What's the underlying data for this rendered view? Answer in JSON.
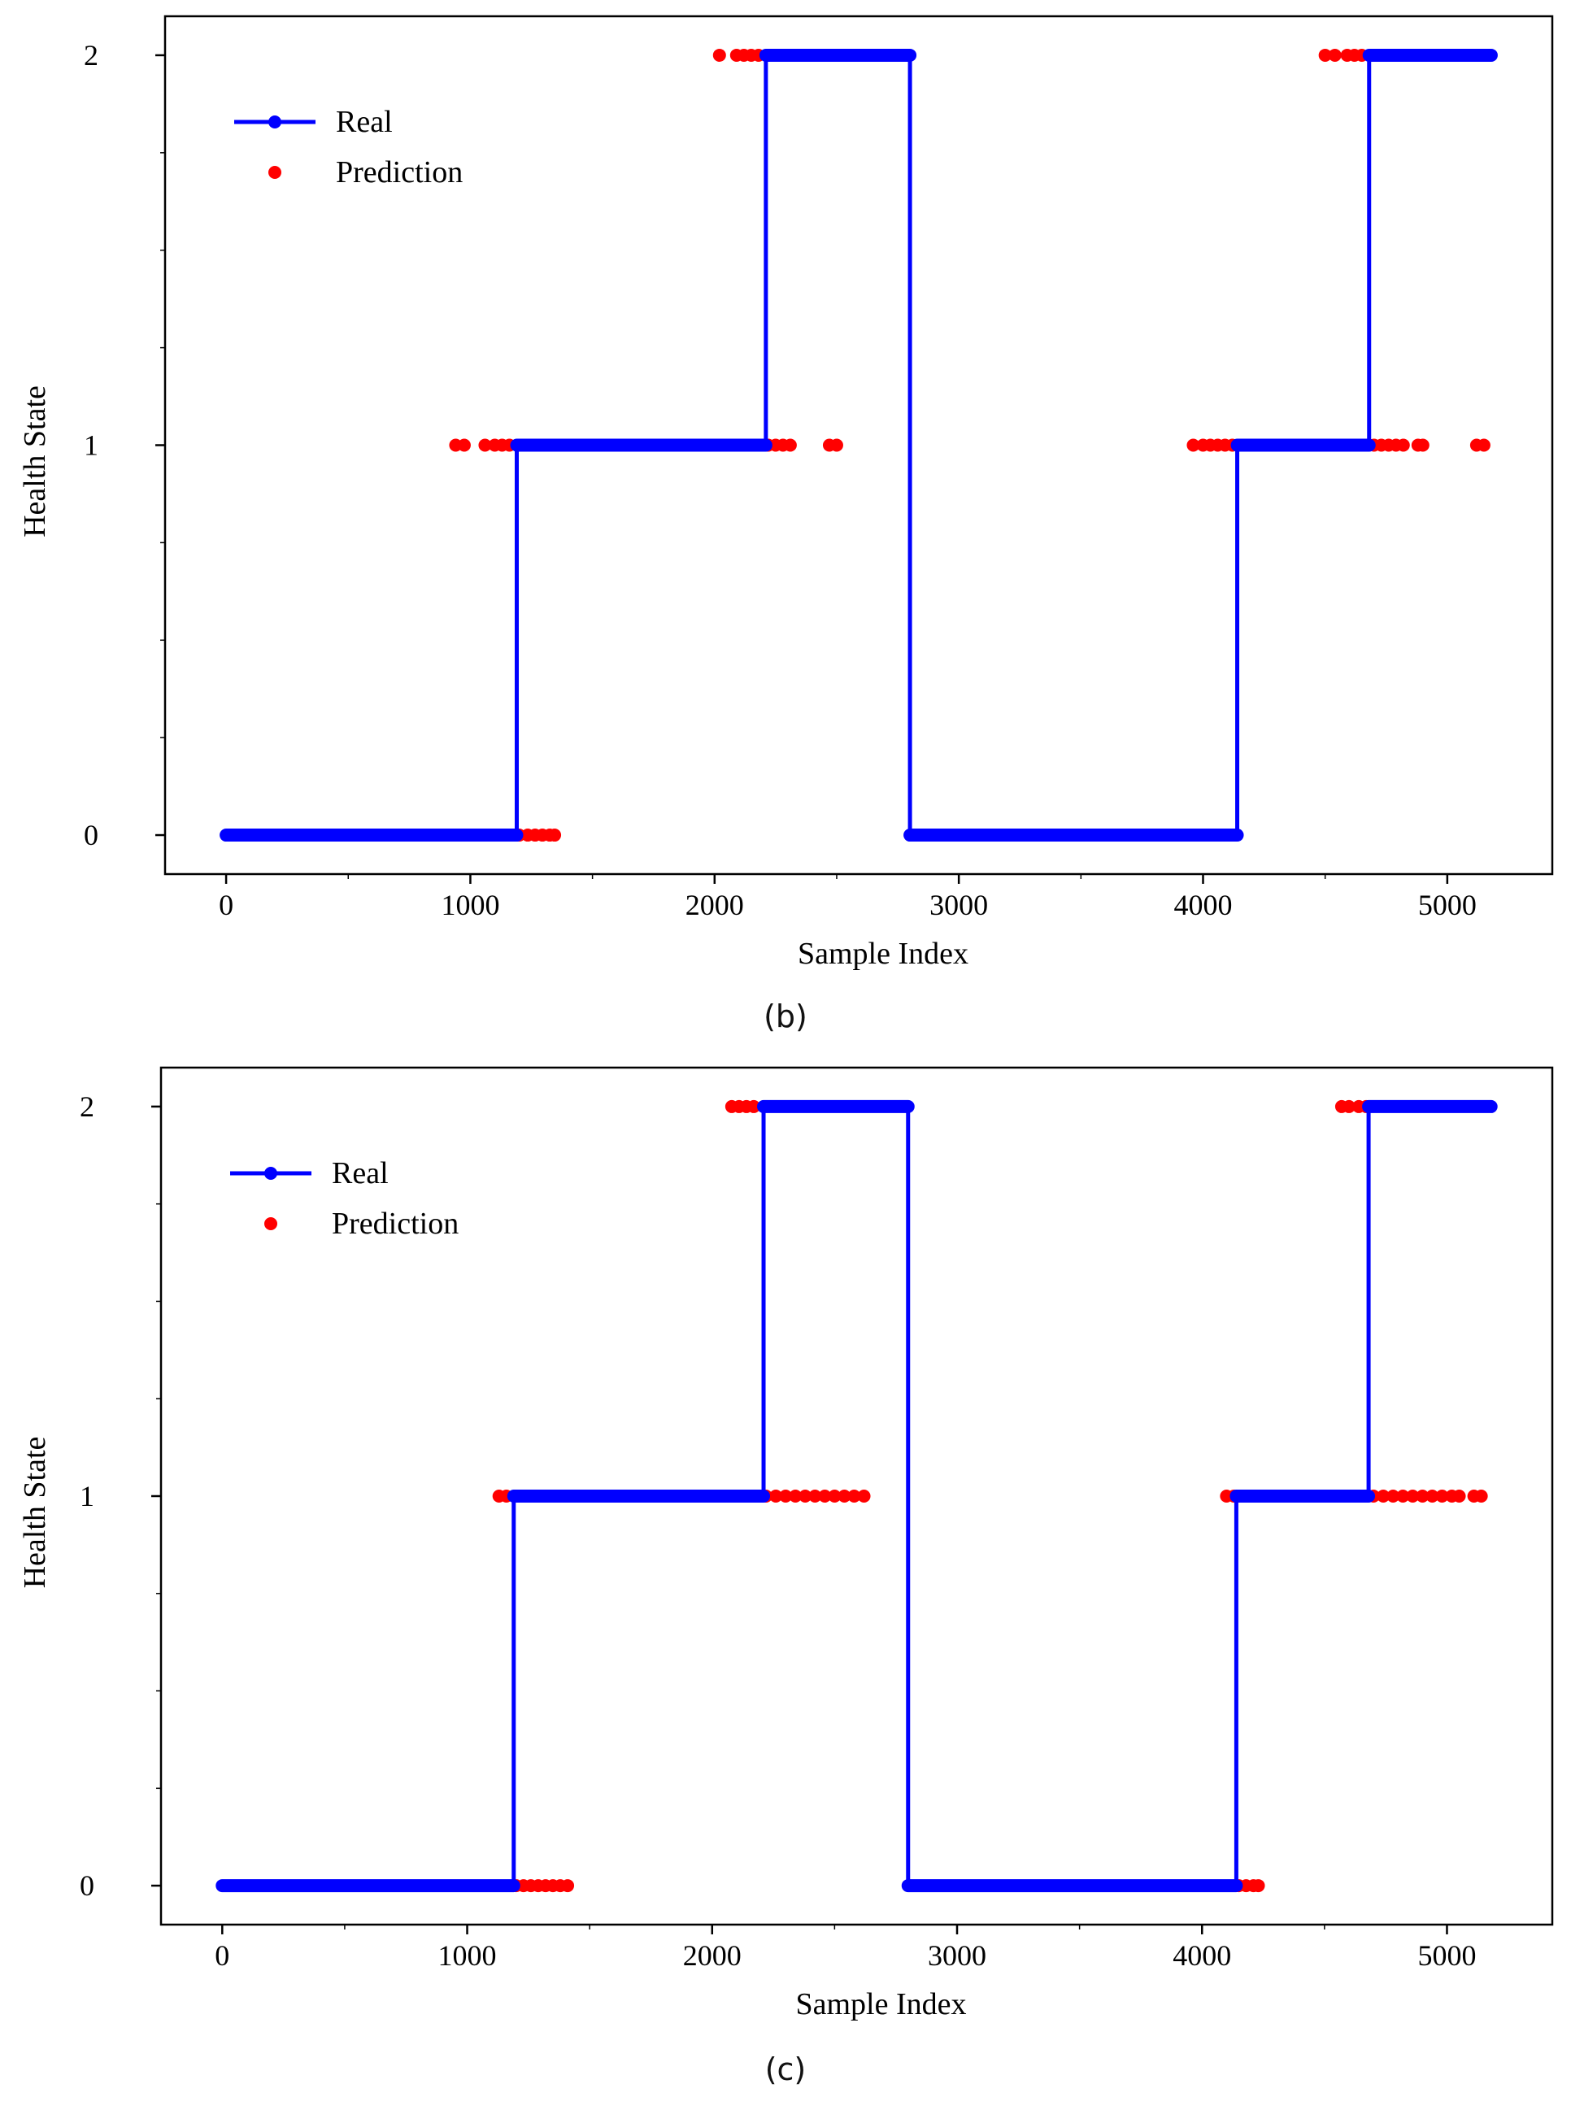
{
  "chart_data": [
    {
      "type": "line",
      "caption": "(b)",
      "xlabel": "Sample Index",
      "ylabel": "Health State",
      "xlim": [
        -250,
        5430
      ],
      "ylim": [
        -0.1,
        2.1
      ],
      "xticks": [
        0,
        1000,
        2000,
        3000,
        4000,
        5000
      ],
      "yticks": [
        0,
        1,
        2
      ],
      "legend": {
        "position": "top-left",
        "entries": [
          "Real",
          "Prediction"
        ]
      },
      "series": [
        {
          "name": "Real",
          "color": "#0000ff",
          "style": "step-line-with-markers",
          "segments": [
            {
              "x0": 0,
              "x1": 1190,
              "y": 0
            },
            {
              "x0": 1190,
              "x1": 2210,
              "y": 1
            },
            {
              "x0": 2210,
              "x1": 2800,
              "y": 2
            },
            {
              "x0": 2800,
              "x1": 4140,
              "y": 0
            },
            {
              "x0": 4140,
              "x1": 4680,
              "y": 1
            },
            {
              "x0": 4680,
              "x1": 5180,
              "y": 2
            }
          ]
        },
        {
          "name": "Prediction",
          "color": "#ff0000",
          "style": "scatter",
          "visible_points": [
            {
              "x": 1200,
              "y": 0
            },
            {
              "x": 1235,
              "y": 0
            },
            {
              "x": 1265,
              "y": 0
            },
            {
              "x": 1295,
              "y": 0
            },
            {
              "x": 1325,
              "y": 0
            },
            {
              "x": 1345,
              "y": 0
            },
            {
              "x": 940,
              "y": 1
            },
            {
              "x": 975,
              "y": 1
            },
            {
              "x": 1060,
              "y": 1
            },
            {
              "x": 1100,
              "y": 1
            },
            {
              "x": 1130,
              "y": 1
            },
            {
              "x": 1160,
              "y": 1
            },
            {
              "x": 2220,
              "y": 1
            },
            {
              "x": 2250,
              "y": 1
            },
            {
              "x": 2280,
              "y": 1
            },
            {
              "x": 2310,
              "y": 1
            },
            {
              "x": 2470,
              "y": 1
            },
            {
              "x": 2500,
              "y": 1
            },
            {
              "x": 2020,
              "y": 2
            },
            {
              "x": 2090,
              "y": 2
            },
            {
              "x": 2120,
              "y": 2
            },
            {
              "x": 2150,
              "y": 2
            },
            {
              "x": 2180,
              "y": 2
            },
            {
              "x": 3960,
              "y": 1
            },
            {
              "x": 4000,
              "y": 1
            },
            {
              "x": 4030,
              "y": 1
            },
            {
              "x": 4060,
              "y": 1
            },
            {
              "x": 4090,
              "y": 1
            },
            {
              "x": 4120,
              "y": 1
            },
            {
              "x": 4700,
              "y": 1
            },
            {
              "x": 4730,
              "y": 1
            },
            {
              "x": 4760,
              "y": 1
            },
            {
              "x": 4790,
              "y": 1
            },
            {
              "x": 4820,
              "y": 1
            },
            {
              "x": 4880,
              "y": 1
            },
            {
              "x": 4900,
              "y": 1
            },
            {
              "x": 5120,
              "y": 1
            },
            {
              "x": 5150,
              "y": 1
            },
            {
              "x": 4500,
              "y": 2
            },
            {
              "x": 4540,
              "y": 2
            },
            {
              "x": 4590,
              "y": 2
            },
            {
              "x": 4620,
              "y": 2
            },
            {
              "x": 4650,
              "y": 2
            }
          ]
        }
      ]
    },
    {
      "type": "line",
      "caption": "(c)",
      "xlabel": "Sample Index",
      "ylabel": "Health State",
      "xlim": [
        -250,
        5430
      ],
      "ylim": [
        -0.1,
        2.1
      ],
      "xticks": [
        0,
        1000,
        2000,
        3000,
        4000,
        5000
      ],
      "yticks": [
        0,
        1,
        2
      ],
      "legend": {
        "position": "top-left",
        "entries": [
          "Real",
          "Prediction"
        ]
      },
      "series": [
        {
          "name": "Real",
          "color": "#0000ff",
          "style": "step-line-with-markers",
          "segments": [
            {
              "x0": 0,
              "x1": 1190,
              "y": 0
            },
            {
              "x0": 1190,
              "x1": 2210,
              "y": 1
            },
            {
              "x0": 2210,
              "x1": 2800,
              "y": 2
            },
            {
              "x0": 2800,
              "x1": 4140,
              "y": 0
            },
            {
              "x0": 4140,
              "x1": 4680,
              "y": 1
            },
            {
              "x0": 4680,
              "x1": 5180,
              "y": 2
            }
          ]
        },
        {
          "name": "Prediction",
          "color": "#ff0000",
          "style": "scatter",
          "visible_points": [
            {
              "x": 1200,
              "y": 0
            },
            {
              "x": 1230,
              "y": 0
            },
            {
              "x": 1260,
              "y": 0
            },
            {
              "x": 1290,
              "y": 0
            },
            {
              "x": 1320,
              "y": 0
            },
            {
              "x": 1350,
              "y": 0
            },
            {
              "x": 1380,
              "y": 0
            },
            {
              "x": 1410,
              "y": 0
            },
            {
              "x": 4150,
              "y": 0
            },
            {
              "x": 4180,
              "y": 0
            },
            {
              "x": 4210,
              "y": 0
            },
            {
              "x": 4230,
              "y": 0
            },
            {
              "x": 1130,
              "y": 1
            },
            {
              "x": 1160,
              "y": 1
            },
            {
              "x": 2220,
              "y": 1
            },
            {
              "x": 2260,
              "y": 1
            },
            {
              "x": 2300,
              "y": 1
            },
            {
              "x": 2340,
              "y": 1
            },
            {
              "x": 2380,
              "y": 1
            },
            {
              "x": 2420,
              "y": 1
            },
            {
              "x": 2460,
              "y": 1
            },
            {
              "x": 2500,
              "y": 1
            },
            {
              "x": 2540,
              "y": 1
            },
            {
              "x": 2580,
              "y": 1
            },
            {
              "x": 2620,
              "y": 1
            },
            {
              "x": 4100,
              "y": 1
            },
            {
              "x": 4130,
              "y": 1
            },
            {
              "x": 4700,
              "y": 1
            },
            {
              "x": 4740,
              "y": 1
            },
            {
              "x": 4780,
              "y": 1
            },
            {
              "x": 4820,
              "y": 1
            },
            {
              "x": 4860,
              "y": 1
            },
            {
              "x": 4900,
              "y": 1
            },
            {
              "x": 4940,
              "y": 1
            },
            {
              "x": 4980,
              "y": 1
            },
            {
              "x": 5020,
              "y": 1
            },
            {
              "x": 5050,
              "y": 1
            },
            {
              "x": 5110,
              "y": 1
            },
            {
              "x": 5140,
              "y": 1
            },
            {
              "x": 2080,
              "y": 2
            },
            {
              "x": 2110,
              "y": 2
            },
            {
              "x": 2140,
              "y": 2
            },
            {
              "x": 2170,
              "y": 2
            },
            {
              "x": 4570,
              "y": 2
            },
            {
              "x": 4600,
              "y": 2
            },
            {
              "x": 4640,
              "y": 2
            },
            {
              "x": 4670,
              "y": 2
            }
          ]
        }
      ]
    }
  ]
}
